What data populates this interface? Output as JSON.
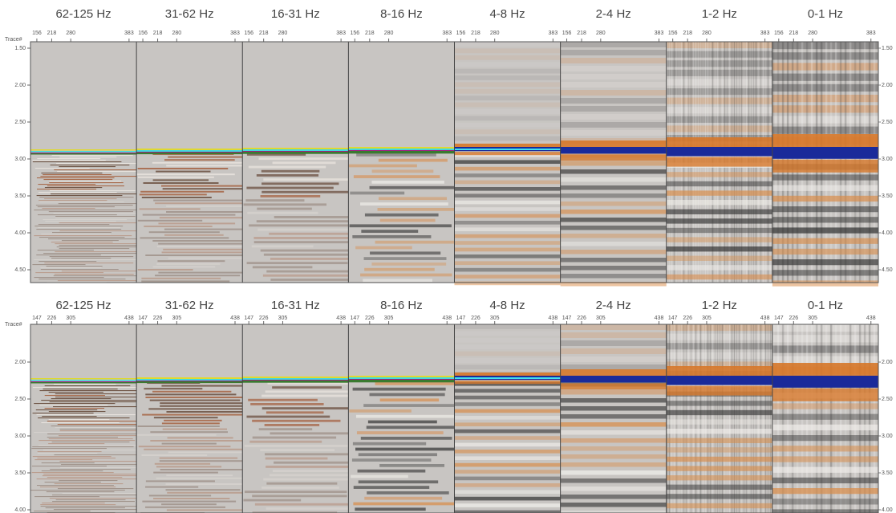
{
  "rows": [
    {
      "trace_label": "Trace#",
      "trace_ticks": [
        "156",
        "218",
        "280",
        "383"
      ],
      "time_ticks": [
        "1.50",
        "2.00",
        "2.50",
        "3.00",
        "3.50",
        "4.00",
        "4.50"
      ],
      "panels": [
        "62-125 Hz",
        "31-62 Hz",
        "16-31 Hz",
        "8-16 Hz",
        "4-8 Hz",
        "2-4 Hz",
        "1-2 Hz",
        "0-1 Hz"
      ]
    },
    {
      "trace_label": "Trace#",
      "trace_ticks": [
        "147",
        "226",
        "305",
        "438"
      ],
      "time_ticks": [
        "2.00",
        "2.50",
        "3.00",
        "3.50",
        "4.00"
      ],
      "panels": [
        "62-125 Hz",
        "31-62 Hz",
        "16-31 Hz",
        "8-16 Hz",
        "4-8 Hz",
        "2-4 Hz",
        "1-2 Hz",
        "0-1 Hz"
      ]
    }
  ]
}
